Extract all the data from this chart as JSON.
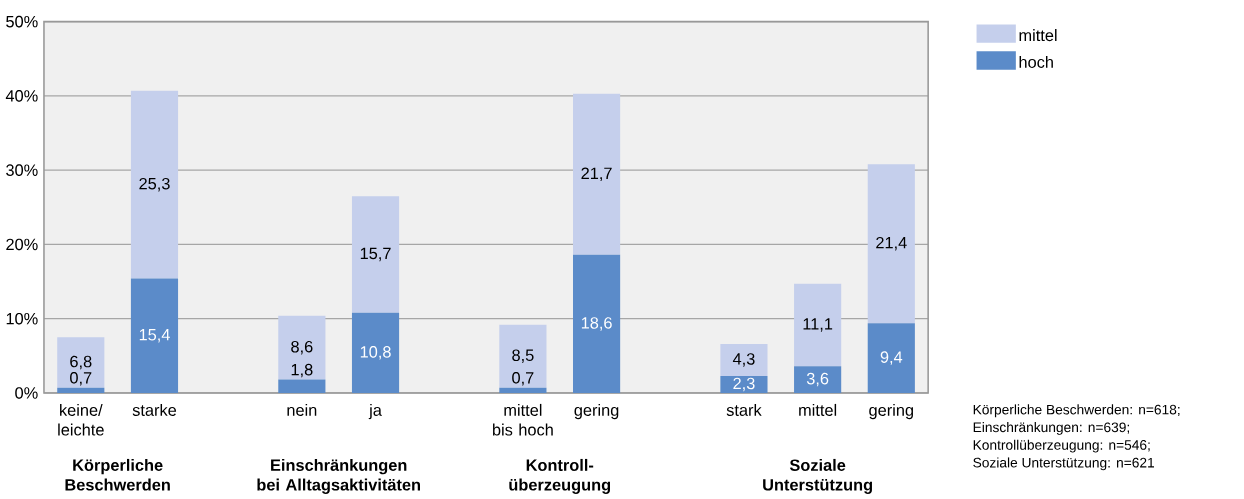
{
  "chart_data": {
    "type": "bar",
    "stacked": true,
    "categories": [
      "keine/ leichte",
      "starke",
      null,
      "nein",
      "ja",
      null,
      "mittel bis hoch",
      "gering",
      null,
      "stark",
      "mittel",
      "gering"
    ],
    "series": [
      {
        "name": "hoch",
        "color": "#5b8bc9",
        "values": [
          0.7,
          15.4,
          null,
          1.8,
          10.8,
          null,
          0.7,
          18.6,
          null,
          2.3,
          3.6,
          9.4
        ],
        "value_labels": [
          "0,7",
          "15,4",
          null,
          "1,8",
          "10,8",
          null,
          "0,7",
          "18,6",
          null,
          "2,3",
          "3,6",
          "9,4"
        ]
      },
      {
        "name": "mittel",
        "color": "#c5cfec",
        "values": [
          6.8,
          25.3,
          null,
          8.6,
          15.7,
          null,
          8.5,
          21.7,
          null,
          4.3,
          11.1,
          21.4
        ],
        "value_labels": [
          "6,8",
          "25,3",
          null,
          "8,6",
          "15,7",
          null,
          "8,5",
          "21,7",
          null,
          "4,3",
          "11,1",
          "21,4"
        ]
      }
    ],
    "ylim": [
      0,
      50
    ],
    "yticks": [
      {
        "value": 0,
        "label": "0%"
      },
      {
        "value": 10,
        "label": "10%"
      },
      {
        "value": 20,
        "label": "20%"
      },
      {
        "value": 30,
        "label": "30%"
      },
      {
        "value": 40,
        "label": "40%"
      },
      {
        "value": 50,
        "label": "50%"
      }
    ],
    "grid": "y",
    "legend": "top right",
    "annotations": [
      "Körperliche Beschwerden",
      "Einschränkungen bei Alltagsaktivitäten",
      "Kontroll-überzeugung",
      "Soziale Unterstützung",
      "Körperliche Beschwerden: n=618;",
      "Einschränkungen: n=639;",
      "Kontrollüberzeugung: n=546;",
      "Soziale Unterstützung: n=621"
    ]
  }
}
